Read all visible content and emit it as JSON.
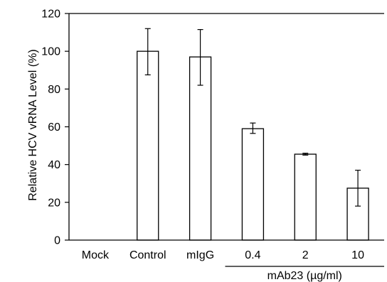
{
  "chart_data": {
    "type": "bar",
    "title": "",
    "xlabel": "",
    "ylabel": "Relative HCV vRNA Level (%)",
    "ylim": [
      0,
      120
    ],
    "yticks": [
      0,
      20,
      40,
      60,
      80,
      100,
      120
    ],
    "categories": [
      "Mock",
      "Control",
      "mIgG",
      "0.4",
      "2",
      "10"
    ],
    "values": [
      0,
      100,
      97,
      59,
      45.5,
      27.5
    ],
    "error_low": [
      0,
      87.5,
      82,
      56.5,
      45,
      18
    ],
    "error_high": [
      0,
      112,
      111.5,
      62,
      46,
      37
    ],
    "group_label": {
      "text": "mAb23 (µg/ml)",
      "categories": [
        "0.4",
        "2",
        "10"
      ]
    },
    "grid": false,
    "legend": "none",
    "colors": {
      "bar_fill": "#ffffff",
      "bar_stroke": "#000000",
      "axis": "#000000"
    }
  }
}
